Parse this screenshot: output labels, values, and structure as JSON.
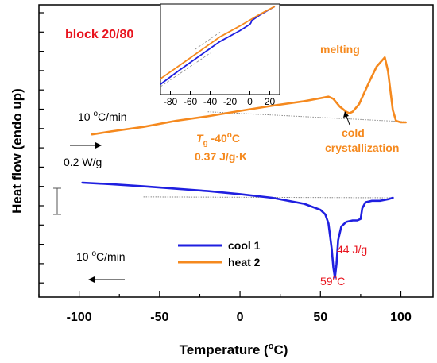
{
  "chart_data": {
    "type": "line",
    "title": "block 20/80",
    "xlabel": "Temperature (°C)",
    "xlabel_main": "Temperature (",
    "xlabel_unit": "C)",
    "ylabel": "Heat flow (endo up)",
    "xlim": [
      -125,
      120
    ],
    "xticks": [
      -100,
      -50,
      0,
      50,
      100
    ],
    "grid": false,
    "legend_position": "center-bottom",
    "series": [
      {
        "name": "cool 1",
        "color": "#1f1fe0",
        "x": [
          -98,
          -80,
          -60,
          -40,
          -20,
          0,
          20,
          40,
          50,
          53,
          55,
          57,
          58,
          59,
          60,
          61,
          63,
          66,
          70,
          73,
          75,
          76,
          78,
          82,
          87,
          92,
          95
        ],
        "y": [
          0.0,
          0.05,
          0.12,
          0.2,
          0.28,
          0.38,
          0.5,
          0.7,
          0.9,
          1.05,
          1.35,
          2.2,
          2.8,
          3.15,
          2.7,
          1.9,
          1.45,
          1.3,
          1.25,
          1.25,
          1.2,
          0.85,
          0.65,
          0.6,
          0.6,
          0.55,
          0.5
        ]
      },
      {
        "name": "heat 2",
        "color": "#f5891e",
        "x": [
          -92,
          -80,
          -60,
          -40,
          -20,
          0,
          20,
          40,
          50,
          55,
          58,
          62,
          66,
          68,
          70,
          74,
          80,
          85,
          90,
          92,
          95,
          97,
          100,
          103
        ],
        "y": [
          -1.6,
          -1.7,
          -1.85,
          -2.05,
          -2.2,
          -2.38,
          -2.55,
          -2.7,
          -2.8,
          -2.85,
          -2.78,
          -2.52,
          -2.35,
          -2.3,
          -2.35,
          -2.6,
          -3.3,
          -3.85,
          -4.15,
          -3.7,
          -2.4,
          -2.05,
          -2.0,
          -2.0
        ]
      }
    ],
    "baselines": [
      {
        "of": "cool 1",
        "x": [
          -60,
          95
        ],
        "y": [
          0.47,
          0.5
        ]
      },
      {
        "of": "heat 2",
        "x": [
          -20,
          103
        ],
        "y": [
          -2.35,
          -2.02
        ]
      }
    ],
    "annotations": {
      "melting": "melting",
      "cold1": "cold",
      "cold2": "crystallization",
      "tg_sym": "T",
      "tg_sub": "g",
      "tg_val": " -40",
      "tg_unit": "C",
      "deg": "o",
      "cp": "0.37 J/g·K",
      "dh": "44 J/g",
      "tpeak": "59",
      "tpeak_unit": "C",
      "rate_top_val": "10 ",
      "rate_top_unit": "C/min",
      "rate_bottom_val": "10 ",
      "rate_bottom_unit": "C/min",
      "scale": "0.2 W/g"
    },
    "inset": {
      "xlim": [
        -90,
        30
      ],
      "xticks": [
        -80,
        -60,
        -40,
        -20,
        0,
        20
      ],
      "heat_x": [
        -90,
        -70,
        -50,
        -30,
        -10,
        10,
        25
      ],
      "heat_y": [
        0.12,
        0.3,
        0.48,
        0.66,
        0.8,
        0.95,
        1.05
      ],
      "cool_x": [
        -90,
        -70,
        -50,
        -30,
        -10,
        0,
        1,
        2,
        10,
        25
      ],
      "cool_y": [
        0.05,
        0.24,
        0.42,
        0.6,
        0.74,
        0.82,
        0.84,
        0.87,
        0.94,
        1.05
      ]
    }
  }
}
